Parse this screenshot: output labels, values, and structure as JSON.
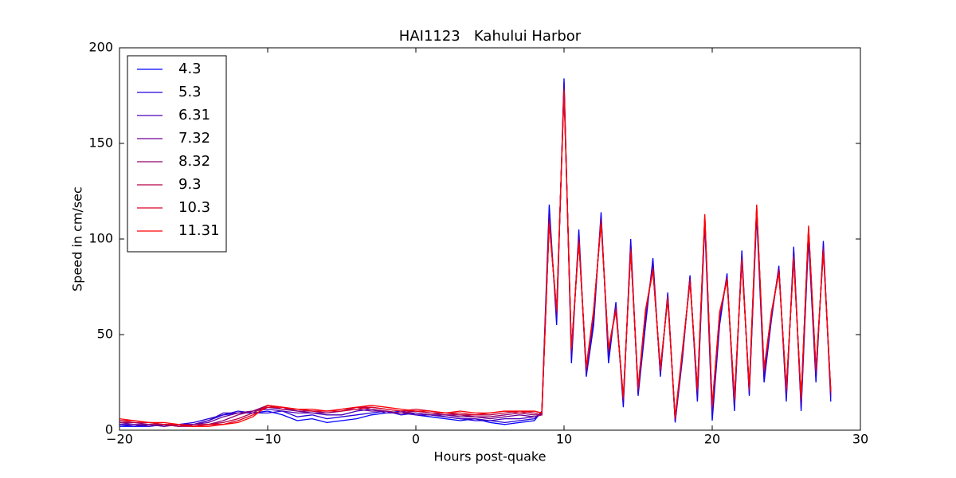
{
  "chart_data": {
    "type": "line",
    "title": "HAI1123   Kahului Harbor",
    "x_label": "Hours post-quake",
    "y_label": "Speed in cm/sec",
    "x": [
      -20,
      -19,
      -18,
      -17,
      -16,
      -15,
      -14,
      -13,
      -12,
      -11,
      -10,
      -9,
      -8,
      -7,
      -6,
      -5,
      -4,
      -3,
      -2,
      -1,
      0,
      1,
      2,
      3,
      4,
      5,
      6,
      7,
      8,
      8.5,
      9,
      9.5,
      10,
      10.5,
      11,
      11.5,
      12,
      12.5,
      13,
      13.5,
      14,
      14.5,
      15,
      15.5,
      16,
      16.5,
      17,
      17.5,
      18,
      18.5,
      19,
      19.5,
      20,
      20.5,
      21,
      21.5,
      22,
      22.5,
      23,
      23.5,
      24,
      24.5,
      25,
      25.5,
      26,
      26.5,
      27,
      27.5,
      28
    ],
    "xlim": [
      -20,
      30
    ],
    "ylim": [
      0,
      200
    ],
    "xticks": [
      {
        "value": -20,
        "label": "−20"
      },
      {
        "value": -10,
        "label": "−10"
      },
      0,
      10,
      20,
      30
    ],
    "yticks": [
      0,
      50,
      100,
      150,
      200
    ],
    "legend": "upper left",
    "series": [
      {
        "name": "4.3",
        "color": "#0000ff",
        "values": [
          2,
          2,
          2,
          3,
          2,
          3,
          5,
          8,
          9,
          9,
          10,
          8,
          5,
          6,
          4,
          5,
          6,
          8,
          9,
          10,
          8,
          7,
          6,
          5,
          6,
          4,
          3,
          4,
          5,
          10,
          118,
          55,
          184,
          35,
          105,
          28,
          55,
          114,
          35,
          67,
          12,
          100,
          18,
          55,
          90,
          28,
          72,
          4,
          38,
          81,
          15,
          108,
          5,
          55,
          82,
          10,
          94,
          18,
          112,
          25,
          58,
          86,
          15,
          96,
          10,
          100,
          25,
          99,
          15
        ]
      },
      {
        "name": "5.3",
        "color": "#2400db",
        "values": [
          3,
          2,
          3,
          2,
          3,
          4,
          6,
          8,
          10,
          9,
          9,
          10,
          7,
          8,
          6,
          7,
          8,
          9,
          10,
          8,
          9,
          8,
          7,
          6,
          5,
          5,
          4,
          5,
          6,
          9,
          114,
          58,
          182,
          38,
          102,
          29,
          58,
          112,
          38,
          66,
          14,
          98,
          19,
          58,
          88,
          29,
          71,
          5,
          39,
          80,
          17,
          109,
          8,
          57,
          81,
          12,
          92,
          19,
          114,
          27,
          59,
          85,
          17,
          94,
          12,
          102,
          27,
          97,
          17
        ]
      },
      {
        "name": "6.31",
        "color": "#4900b6",
        "values": [
          3,
          3,
          2,
          3,
          3,
          3,
          5,
          9,
          9,
          10,
          11,
          10,
          9,
          9,
          8,
          8,
          10,
          11,
          9,
          9,
          8,
          8,
          7,
          6,
          6,
          5,
          6,
          6,
          7,
          8,
          112,
          60,
          180,
          40,
          101,
          30,
          60,
          111,
          40,
          65,
          15,
          96,
          20,
          60,
          86,
          30,
          70,
          5,
          40,
          80,
          19,
          110,
          10,
          59,
          80,
          14,
          91,
          20,
          115,
          29,
          60,
          85,
          19,
          92,
          14,
          104,
          29,
          96,
          18
        ]
      },
      {
        "name": "7.32",
        "color": "#6d0092",
        "values": [
          4,
          3,
          3,
          2,
          3,
          3,
          4,
          7,
          9,
          10,
          12,
          11,
          10,
          9,
          9,
          10,
          11,
          10,
          10,
          9,
          9,
          8,
          8,
          7,
          7,
          6,
          7,
          8,
          7,
          8,
          110,
          61,
          179,
          41,
          100,
          31,
          61,
          110,
          41,
          64,
          16,
          95,
          21,
          61,
          85,
          31,
          70,
          6,
          41,
          79,
          20,
          111,
          11,
          60,
          80,
          15,
          90,
          21,
          116,
          30,
          60,
          84,
          20,
          91,
          15,
          105,
          30,
          95,
          19
        ]
      },
      {
        "name": "8.32",
        "color": "#92006d",
        "values": [
          4,
          4,
          3,
          3,
          2,
          3,
          3,
          5,
          8,
          10,
          13,
          12,
          10,
          10,
          9,
          10,
          12,
          11,
          10,
          9,
          10,
          9,
          8,
          8,
          7,
          7,
          8,
          9,
          8,
          8,
          110,
          62,
          178,
          42,
          100,
          32,
          62,
          110,
          42,
          64,
          16,
          95,
          21,
          62,
          85,
          31,
          70,
          6,
          41,
          79,
          21,
          111,
          12,
          60,
          80,
          16,
          90,
          21,
          116,
          31,
          61,
          84,
          21,
          91,
          16,
          105,
          31,
          95,
          20
        ]
      },
      {
        "name": "9.3",
        "color": "#b60049",
        "values": [
          5,
          4,
          4,
          3,
          2,
          2,
          3,
          4,
          6,
          9,
          13,
          11,
          11,
          10,
          10,
          11,
          12,
          12,
          11,
          10,
          10,
          9,
          9,
          8,
          8,
          8,
          9,
          10,
          9,
          8,
          109,
          62,
          178,
          42,
          99,
          32,
          62,
          109,
          42,
          63,
          17,
          94,
          22,
          62,
          84,
          32,
          69,
          6,
          42,
          78,
          21,
          112,
          12,
          61,
          79,
          16,
          89,
          22,
          117,
          31,
          61,
          83,
          21,
          90,
          16,
          106,
          31,
          94,
          20
        ]
      },
      {
        "name": "10.3",
        "color": "#db0024",
        "values": [
          5,
          5,
          4,
          3,
          3,
          2,
          3,
          3,
          5,
          8,
          12,
          12,
          11,
          10,
          10,
          10,
          11,
          12,
          11,
          10,
          11,
          10,
          9,
          9,
          8,
          9,
          10,
          9,
          10,
          9,
          108,
          63,
          177,
          43,
          99,
          33,
          63,
          108,
          43,
          63,
          17,
          94,
          22,
          63,
          84,
          32,
          69,
          7,
          42,
          78,
          22,
          112,
          13,
          61,
          79,
          17,
          89,
          22,
          117,
          32,
          62,
          83,
          22,
          90,
          17,
          106,
          32,
          94,
          21
        ]
      },
      {
        "name": "11.31",
        "color": "#ff0000",
        "values": [
          6,
          5,
          4,
          4,
          3,
          2,
          2,
          3,
          4,
          7,
          13,
          12,
          11,
          11,
          10,
          11,
          12,
          13,
          12,
          11,
          10,
          10,
          9,
          10,
          9,
          9,
          10,
          10,
          10,
          9,
          108,
          63,
          177,
          43,
          98,
          33,
          63,
          108,
          43,
          62,
          18,
          93,
          23,
          63,
          83,
          33,
          68,
          7,
          43,
          77,
          22,
          113,
          13,
          62,
          78,
          17,
          88,
          23,
          118,
          32,
          62,
          82,
          22,
          89,
          17,
          107,
          32,
          93,
          21
        ]
      }
    ]
  }
}
